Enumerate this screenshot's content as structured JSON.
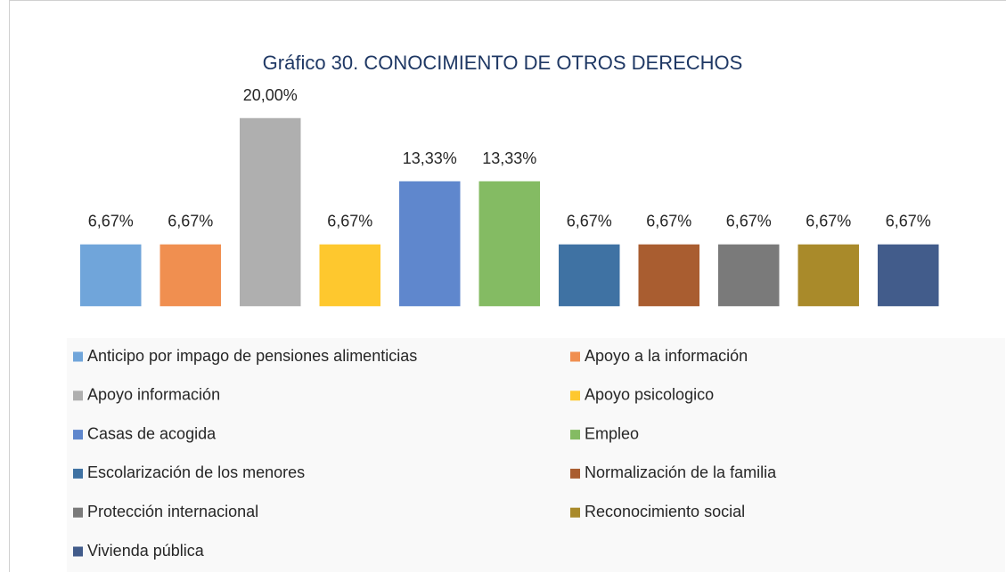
{
  "chart_data": {
    "type": "bar",
    "title": "Gráfico 30. CONOCIMIENTO DE OTROS DERECHOS",
    "series": [
      {
        "name": "Anticipo por impago de pensiones alimenticias",
        "color": "#70a5da",
        "values": [
          6.67
        ],
        "value_labels": [
          "6,67%"
        ]
      },
      {
        "name": "Apoyo a la información",
        "color": "#f08f50",
        "values": [
          6.67
        ],
        "value_labels": [
          "6,67%"
        ]
      },
      {
        "name": "Apoyo información",
        "color": "#afafaf",
        "values": [
          20.0
        ],
        "value_labels": [
          "20,00%"
        ]
      },
      {
        "name": "Apoyo psicologico",
        "color": "#fec82e",
        "values": [
          6.67
        ],
        "value_labels": [
          "6,67%"
        ]
      },
      {
        "name": "Casas de acogida",
        "color": "#5f87cd",
        "values": [
          13.33
        ],
        "value_labels": [
          "13,33%"
        ]
      },
      {
        "name": "Empleo",
        "color": "#84bb63",
        "values": [
          13.33
        ],
        "value_labels": [
          "13,33%"
        ]
      },
      {
        "name": "Escolarización de los menores",
        "color": "#3f72a3",
        "values": [
          6.67
        ],
        "value_labels": [
          "6,67%"
        ]
      },
      {
        "name": "Normalización de la familia",
        "color": "#a95d30",
        "values": [
          6.67
        ],
        "value_labels": [
          "6,67%"
        ]
      },
      {
        "name": "Protección internacional",
        "color": "#7a7a7a",
        "values": [
          6.67
        ],
        "value_labels": [
          "6,67%"
        ]
      },
      {
        "name": "Reconocimiento social",
        "color": "#a98a2a",
        "values": [
          6.67
        ],
        "value_labels": [
          "6,67%"
        ]
      },
      {
        "name": "Vivienda pública",
        "color": "#425c8b",
        "values": [
          6.67
        ],
        "value_labels": [
          "6,67%"
        ]
      }
    ]
  }
}
